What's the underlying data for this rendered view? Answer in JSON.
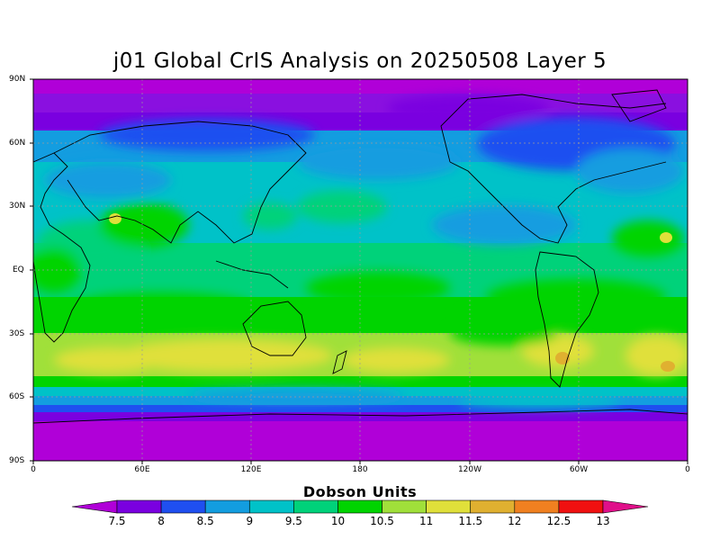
{
  "title": "j01 Global CrIS Analysis on 20250508 Layer 5",
  "lat_labels": [
    "90N",
    "60N",
    "30N",
    "EQ",
    "30S",
    "60S",
    "90S"
  ],
  "lon_labels": [
    "0",
    "60E",
    "120E",
    "180",
    "120W",
    "60W",
    "0"
  ],
  "colorbar": {
    "title": "Dobson Units",
    "labels": [
      "7.5",
      "8",
      "8.5",
      "9",
      "9.5",
      "10",
      "10.5",
      "11",
      "11.5",
      "12",
      "12.5",
      "13"
    ],
    "colors": [
      "#b000d8",
      "#7a00e0",
      "#1f4ff0",
      "#139de0",
      "#00c2c8",
      "#00d27a",
      "#00d400",
      "#a0e03a",
      "#e0e03a",
      "#e0b030",
      "#f08020",
      "#f01010",
      "#e0108a"
    ]
  },
  "colors": {
    "lo_purple": "#b000d8",
    "violet": "#7a00e0",
    "blue": "#1f4ff0",
    "cyan": "#139de0",
    "teal": "#00c2c8",
    "green_teal": "#00d27a",
    "green": "#00d400",
    "lime": "#a0e03a",
    "yellow": "#e0e03a",
    "orange": "#e0b030"
  }
}
